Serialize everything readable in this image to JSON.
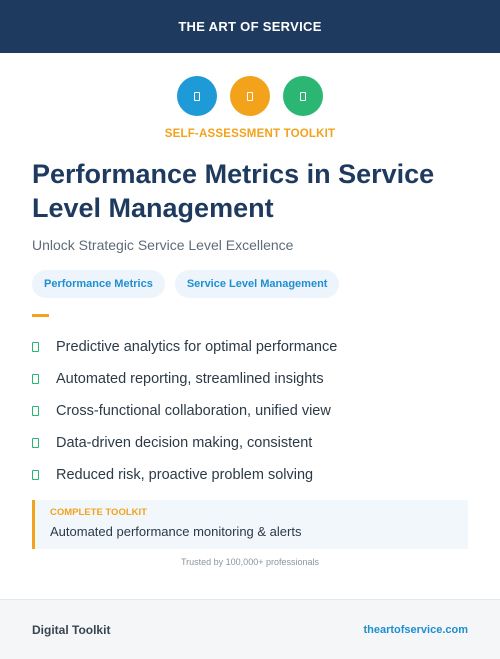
{
  "header": {
    "brand": "THE ART OF SERVICE"
  },
  "icons": [
    {
      "name": "blue-badge-icon",
      "color": "#1e9ad6"
    },
    {
      "name": "orange-badge-icon",
      "color": "#f2a21b"
    },
    {
      "name": "green-badge-icon",
      "color": "#2bb673"
    }
  ],
  "eyebrow": "SELF-ASSESSMENT TOOLKIT",
  "title": "Performance Metrics in Service Level Management",
  "subtitle": "Unlock Strategic Service Level Excellence",
  "tags": [
    "Performance Metrics",
    "Service Level Management"
  ],
  "features": [
    "Predictive analytics for optimal performance",
    "Automated reporting, streamlined insights",
    "Cross-functional collaboration, unified view",
    "Data-driven decision making, consistent",
    "Reduced risk, proactive problem solving"
  ],
  "callout": {
    "label": "COMPLETE TOOLKIT",
    "text": "Automated performance monitoring & alerts"
  },
  "trusted": "Trusted by 100,000+ professionals",
  "footer": {
    "left": "Digital Toolkit",
    "right": "theartofservice.com"
  },
  "colors": {
    "navy": "#1e3a5f",
    "accent_orange": "#f2a21b",
    "accent_blue": "#1e9ad6",
    "accent_green": "#2bb673"
  }
}
